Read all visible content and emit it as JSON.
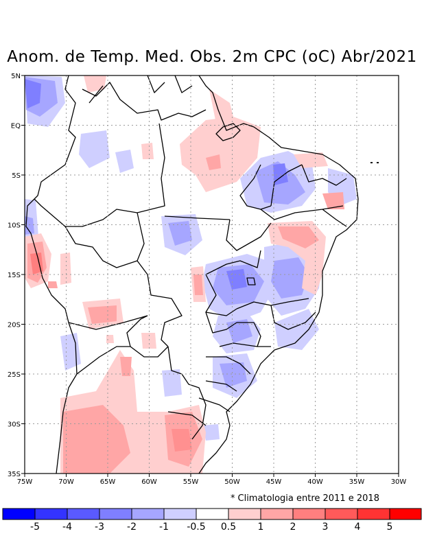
{
  "title": "Anom. de Temp. Med. Obs. 2m CPC (oC) Abr/2021",
  "note": {
    "symbol": "*",
    "text": "Climatologia entre 2011 e 2018"
  },
  "axes": {
    "x_labels": [
      "75W",
      "70W",
      "65W",
      "60W",
      "55W",
      "50W",
      "45W",
      "40W",
      "35W",
      "30W"
    ],
    "y_labels": [
      "5N",
      "EQ",
      "5S",
      "10S",
      "15S",
      "20S",
      "25S",
      "30S",
      "35S"
    ]
  },
  "colorbar": {
    "labels": [
      "-5",
      "-4",
      "-3",
      "-2",
      "-1",
      "-0.5",
      "0.5",
      "1",
      "2",
      "3",
      "4",
      "5"
    ],
    "colors": [
      "#0000ff",
      "#3333ff",
      "#5a5aff",
      "#7f7fff",
      "#a6a6ff",
      "#cfcfff",
      "#ffffff",
      "#ffcfcf",
      "#ffa6a6",
      "#ff7f7f",
      "#ff5a5a",
      "#ff3333",
      "#ff0000"
    ]
  }
}
